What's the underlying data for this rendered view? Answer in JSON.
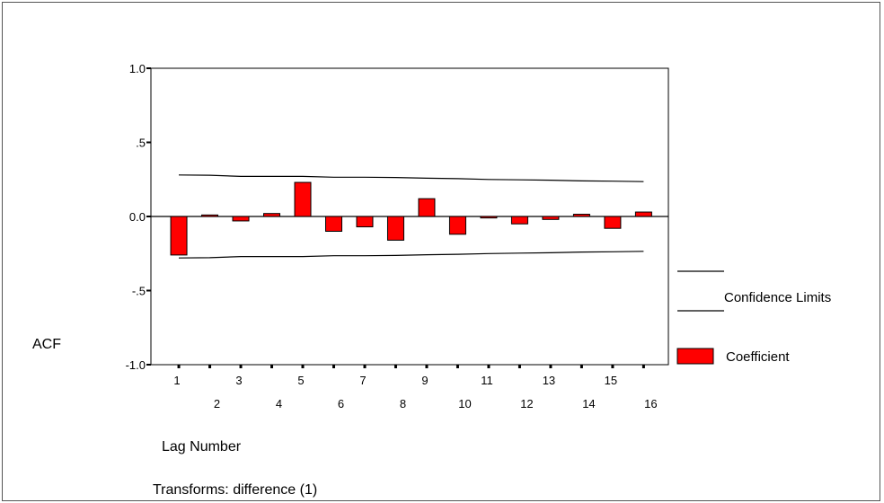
{
  "chart_data": {
    "type": "bar",
    "ylabel": "ACF",
    "xlabel": "Lag Number",
    "note": "Transforms: difference (1)",
    "ylim": [
      -1.0,
      1.0
    ],
    "yticks": [
      {
        "value": 1.0,
        "label": "1.0"
      },
      {
        "value": 0.5,
        "label": ".5"
      },
      {
        "value": 0.0,
        "label": "0.0"
      },
      {
        "value": -0.5,
        "label": "-.5"
      },
      {
        "value": -1.0,
        "label": "-1.0"
      }
    ],
    "categories": [
      "1",
      "2",
      "3",
      "4",
      "5",
      "6",
      "7",
      "8",
      "9",
      "10",
      "11",
      "12",
      "13",
      "14",
      "15",
      "16"
    ],
    "series": [
      {
        "name": "Coefficient",
        "values": [
          -0.26,
          0.01,
          -0.03,
          0.02,
          0.23,
          -0.1,
          -0.07,
          -0.16,
          0.12,
          -0.12,
          -0.01,
          -0.05,
          -0.02,
          0.015,
          -0.08,
          0.03
        ]
      }
    ],
    "confidence_limits": {
      "name": "Confidence Limits",
      "upper": [
        0.28,
        0.278,
        0.27,
        0.27,
        0.27,
        0.265,
        0.265,
        0.263,
        0.258,
        0.255,
        0.25,
        0.247,
        0.245,
        0.24,
        0.238,
        0.235
      ],
      "lower": [
        -0.28,
        -0.278,
        -0.27,
        -0.27,
        -0.27,
        -0.265,
        -0.265,
        -0.263,
        -0.258,
        -0.255,
        -0.25,
        -0.247,
        -0.245,
        -0.24,
        -0.238,
        -0.235
      ]
    },
    "legend": {
      "position": "right",
      "items": [
        {
          "label": "Confidence Limits",
          "kind": "line"
        },
        {
          "label": "Coefficient",
          "kind": "bar"
        }
      ]
    },
    "colors": {
      "bar": "#ff0000",
      "line": "#000000"
    },
    "grid": false
  }
}
